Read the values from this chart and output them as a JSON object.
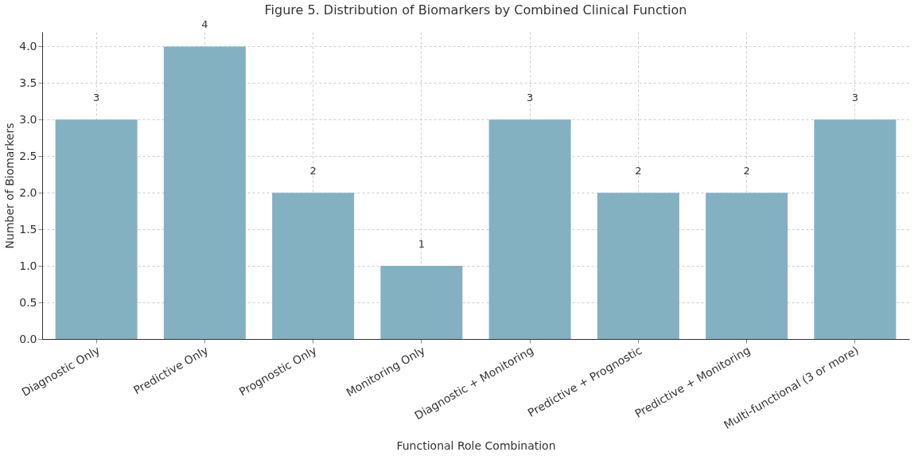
{
  "chart_data": {
    "type": "bar",
    "title": "Figure 5. Distribution of Biomarkers by Combined Clinical Function",
    "xlabel": "Functional Role Combination",
    "ylabel": "Number of Biomarkers",
    "categories": [
      "Diagnostic Only",
      "Predictive Only",
      "Prognostic Only",
      "Monitoring Only",
      "Diagnostic + Monitoring",
      "Predictive + Prognostic",
      "Predictive + Monitoring",
      "Multi-functional (3 or more)"
    ],
    "values": [
      3,
      4,
      2,
      1,
      3,
      2,
      2,
      3
    ],
    "color": "#84b1c2",
    "ylim": [
      0,
      4.2
    ],
    "yticks": [
      {
        "value": 0,
        "label": "0.0"
      },
      {
        "value": 0.5,
        "label": "0.5"
      },
      {
        "value": 1,
        "label": "1.0"
      },
      {
        "value": 1.5,
        "label": "1.5"
      },
      {
        "value": 2,
        "label": "2.0"
      },
      {
        "value": 2.5,
        "label": "2.5"
      },
      {
        "value": 3,
        "label": "3.0"
      },
      {
        "value": 3.5,
        "label": "3.5"
      },
      {
        "value": 4,
        "label": "4.0"
      }
    ],
    "grid": true,
    "data_labels": true
  }
}
